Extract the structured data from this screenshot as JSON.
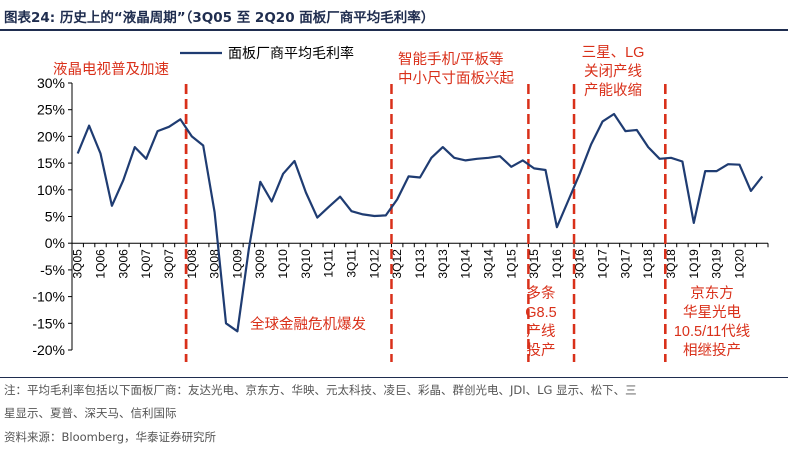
{
  "header": {
    "title": "图表24:   历史上的“液晶周期”（3Q05 至 2Q20 面板厂商平均毛利率）"
  },
  "chart_data": {
    "type": "line",
    "title": "历史上的“液晶周期”（3Q05 至 2Q20 面板厂商平均毛利率）",
    "xlabel": "",
    "ylabel": "",
    "ylim": [
      -20,
      30
    ],
    "y_ticks": [
      "30%",
      "25%",
      "20%",
      "15%",
      "10%",
      "5%",
      "0%",
      "-5%",
      "-10%",
      "-15%",
      "-20%"
    ],
    "x_tick_labels": [
      "3Q05",
      "1Q06",
      "3Q06",
      "1Q07",
      "3Q07",
      "1Q08",
      "3Q08",
      "1Q09",
      "3Q09",
      "1Q10",
      "3Q10",
      "1Q11",
      "3Q11",
      "1Q12",
      "3Q12",
      "1Q13",
      "3Q13",
      "1Q14",
      "3Q14",
      "1Q15",
      "3Q15",
      "1Q16",
      "3Q16",
      "1Q17",
      "3Q17",
      "1Q18",
      "3Q18",
      "1Q19",
      "3Q19",
      "1Q20"
    ],
    "legend": {
      "label": "面板厂商平均毛利率",
      "position": "top-left"
    },
    "series": [
      {
        "name": "面板厂商平均毛利率",
        "color": "#1f3c72",
        "values": [
          16.8,
          22.0,
          16.8,
          7.0,
          11.8,
          18.0,
          15.8,
          21.0,
          21.8,
          23.2,
          20.0,
          18.3,
          5.8,
          -15.0,
          -16.5,
          -1.0,
          11.5,
          7.8,
          13.0,
          15.4,
          9.5,
          4.8,
          6.8,
          8.7,
          6.0,
          5.4,
          5.1,
          5.2,
          8.2,
          12.5,
          12.3,
          16.0,
          18.0,
          16.0,
          15.5,
          15.8,
          16.0,
          16.3,
          14.3,
          15.5,
          14.0,
          13.7,
          3.0,
          8.0,
          13.0,
          18.5,
          22.8,
          24.2,
          21.0,
          21.2,
          18.0,
          15.8,
          16.0,
          15.3,
          3.8,
          13.5,
          13.5,
          14.8,
          14.7,
          9.8,
          12.5
        ]
      }
    ],
    "events": [
      {
        "label": "液晶电视普及加速",
        "index": 9.5
      },
      {
        "label": "全球金融危机爆发",
        "index": 9.5
      },
      {
        "label": "智能手机/平板等中小尺寸面板兴起",
        "index": 27.5
      },
      {
        "label": "多条G8.5产线投产",
        "index": 39.5
      },
      {
        "label": "多条G8.5产线投产",
        "index": 43.5
      },
      {
        "label": "三星、LG关闭产线产能收缩",
        "index": 51.5
      },
      {
        "label": "京东方华星光电10.5/11代线相继投产",
        "index": 51.5
      }
    ],
    "annotations": [
      {
        "lines": [
          "液晶电视普及加速"
        ]
      },
      {
        "lines": [
          "全球金融危机爆发"
        ]
      },
      {
        "lines": [
          "智能手机/平板等",
          "中小尺寸面板兴起"
        ]
      },
      {
        "lines": [
          "多条",
          "G8.5",
          "产线",
          "投产"
        ]
      },
      {
        "lines": [
          "三星、LG",
          "关闭产线",
          "产能收缩"
        ]
      },
      {
        "lines": [
          "京东方",
          "华星光电",
          "10.5/11代线",
          "相继投产"
        ]
      }
    ],
    "colors": {
      "line": "#1f3c72",
      "event": "#d9301a",
      "axis": "#000000"
    }
  },
  "footer": {
    "note_line1": "注：平均毛利率包括以下面板厂商：友达光电、京东方、华映、元太科技、凌巨、彩晶、群创光电、JDI、LG 显示、松下、三",
    "note_line2": "星显示、夏普、深天马、信利国际",
    "source": "资料来源：Bloomberg，华泰证券研究所"
  }
}
